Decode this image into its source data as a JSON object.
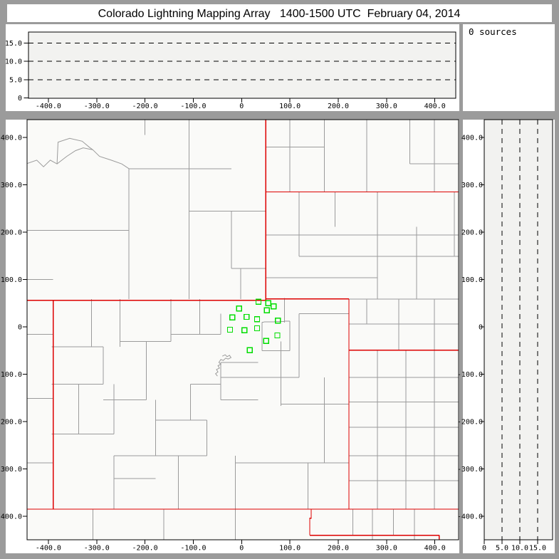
{
  "title": "Colorado Lightning Mapping Array   1400-1500 UTC  February 04, 2014",
  "sources_label": "0 sources",
  "colors": {
    "frame_gray": "#9b9b9b",
    "panel_white": "#ffffff",
    "plot_bg": "#f2f2f0",
    "map_bg": "#fafaf8",
    "county_line": "#9b9b9b",
    "state_border": "#dd0000",
    "station_marker": "#00dd00",
    "axis": "#000000",
    "grid_dash": "#000000"
  },
  "chart_data": [
    {
      "id": "altitude-vs-east-west",
      "type": "scatter",
      "title": "",
      "x_ticks": [
        -400,
        -300,
        -200,
        -100,
        0,
        100,
        200,
        300,
        400
      ],
      "x_tick_labels": [
        "-400.0",
        "-300.0",
        "-200.0",
        "-100.0",
        "0",
        "100.0",
        "200.0",
        "300.0",
        "400.0"
      ],
      "y_ticks": [
        0,
        5,
        10,
        15
      ],
      "y_tick_labels": [
        "0",
        "5.0",
        "10.0",
        "15.0"
      ],
      "xlim": [
        -444,
        449
      ],
      "ylim": [
        0,
        18
      ],
      "y_gridlines_dashed": [
        5,
        10,
        15
      ],
      "grid_style": "dashed",
      "points": []
    },
    {
      "id": "source-count",
      "type": "table",
      "text": "0 sources",
      "value": 0
    },
    {
      "id": "plan-view-map",
      "type": "scatter",
      "title": "",
      "x_ticks": [
        -400,
        -300,
        -200,
        -100,
        0,
        100,
        200,
        300,
        400
      ],
      "x_tick_labels": [
        "-400.0",
        "-300.0",
        "-200.0",
        "-100.0",
        "0",
        "100.0",
        "200.0",
        "300.0",
        "400.0"
      ],
      "y_ticks": [
        400,
        300,
        200,
        100,
        0,
        -100,
        -200,
        -300,
        -400
      ],
      "y_tick_labels": [
        "400.0",
        "300.0",
        "200.0",
        "100.0",
        "0",
        "-100.0",
        "-200.0",
        "-300.0",
        "-400.0"
      ],
      "xlim": [
        -444,
        449
      ],
      "ylim": [
        -450,
        438
      ],
      "marker": "open-square",
      "marker_color": "#00dd00",
      "points": [
        [
          35,
          53
        ],
        [
          55,
          50
        ],
        [
          66,
          43
        ],
        [
          52,
          35
        ],
        [
          -5,
          39
        ],
        [
          -19,
          20
        ],
        [
          10,
          21
        ],
        [
          32,
          16
        ],
        [
          75,
          13
        ],
        [
          -24,
          -6
        ],
        [
          6,
          -7
        ],
        [
          32,
          -3
        ],
        [
          74,
          -18
        ],
        [
          51,
          -30
        ],
        [
          17,
          -49
        ]
      ]
    },
    {
      "id": "altitude-vs-north-south",
      "type": "scatter",
      "title": "",
      "x_ticks": [
        0,
        5,
        10,
        15
      ],
      "x_tick_labels": [
        "0",
        "5.0",
        "10.0",
        "15.0"
      ],
      "y_ticks": [
        400,
        300,
        200,
        100,
        0,
        -100,
        -200,
        -300,
        -400
      ],
      "y_tick_labels": [
        "400.0",
        "300.0",
        "200.0",
        "100.0",
        "0",
        "-100.0",
        "-200.0",
        "-300.0",
        "-400.0"
      ],
      "xlim": [
        0,
        19.2
      ],
      "ylim": [
        -450,
        438
      ],
      "x_gridlines_dashed": [
        5,
        10,
        15
      ],
      "grid_style": "dashed",
      "points": []
    }
  ],
  "map": {
    "state_borders": [
      [
        [
          -444,
          56
        ],
        [
          50,
          56
        ],
        [
          50,
          59
        ],
        [
          222,
          59
        ]
      ],
      [
        [
          50,
          56
        ],
        [
          50,
          438
        ]
      ],
      [
        [
          50,
          285
        ],
        [
          449,
          285
        ]
      ],
      [
        [
          -390,
          56
        ],
        [
          -390,
          -385
        ]
      ],
      [
        [
          222,
          59
        ],
        [
          222,
          -385
        ]
      ],
      [
        [
          -444,
          -385
        ],
        [
          449,
          -385
        ]
      ],
      [
        [
          222,
          -49
        ],
        [
          449,
          -49
        ]
      ],
      [
        [
          144,
          -385
        ],
        [
          144,
          -404
        ],
        [
          141,
          -404
        ],
        [
          141,
          -440
        ]
      ],
      [
        [
          141,
          -440
        ],
        [
          409,
          -440
        ]
      ],
      [
        [
          409,
          -440
        ],
        [
          409,
          -450
        ]
      ]
    ],
    "county_segments": [
      [
        -233,
        59,
        -233,
        334
      ],
      [
        -109,
        59,
        -109,
        438
      ],
      [
        -200,
        405,
        -200,
        438
      ],
      [
        -233,
        334,
        -21,
        334
      ],
      [
        -444,
        204,
        -233,
        204
      ],
      [
        -21,
        123,
        -21,
        244
      ],
      [
        -2,
        59,
        -2,
        123
      ],
      [
        -21,
        123,
        50,
        123
      ],
      [
        -109,
        244,
        50,
        244
      ],
      [
        100,
        285,
        100,
        438
      ],
      [
        171,
        285,
        171,
        438
      ],
      [
        259,
        285,
        259,
        438
      ],
      [
        348,
        344,
        348,
        438
      ],
      [
        399,
        285,
        399,
        438
      ],
      [
        348,
        344,
        449,
        344
      ],
      [
        50,
        380,
        171,
        380
      ],
      [
        119,
        149,
        119,
        285
      ],
      [
        193,
        211,
        193,
        285
      ],
      [
        281,
        59,
        281,
        285
      ],
      [
        362,
        59,
        362,
        211
      ],
      [
        440,
        149,
        440,
        285
      ],
      [
        50,
        194,
        449,
        194
      ],
      [
        119,
        149,
        449,
        149
      ],
      [
        50,
        104,
        281,
        104
      ],
      [
        222,
        59,
        449,
        59
      ],
      [
        325,
        -49,
        325,
        59
      ],
      [
        399,
        -49,
        399,
        59
      ],
      [
        222,
        6,
        449,
        6
      ],
      [
        259,
        6,
        259,
        59
      ],
      [
        281,
        -385,
        281,
        -49
      ],
      [
        340,
        -385,
        340,
        -49
      ],
      [
        399,
        -385,
        399,
        -49
      ],
      [
        222,
        -107,
        449,
        -107
      ],
      [
        222,
        -159,
        449,
        -159
      ],
      [
        222,
        -212,
        449,
        -212
      ],
      [
        222,
        -272,
        449,
        -272
      ],
      [
        222,
        -325,
        449,
        -325
      ],
      [
        -311,
        -42,
        -311,
        59
      ],
      [
        -393,
        -42,
        -286,
        -42
      ],
      [
        -286,
        -121,
        -286,
        -42
      ],
      [
        -393,
        -121,
        -286,
        -121
      ],
      [
        -337,
        -226,
        -337,
        -121
      ],
      [
        -393,
        -226,
        -264,
        -226
      ],
      [
        -264,
        -226,
        -264,
        -121
      ],
      [
        -286,
        -154,
        -197,
        -154
      ],
      [
        -197,
        -154,
        -197,
        -31
      ],
      [
        -252,
        -42,
        -252,
        59
      ],
      [
        -252,
        -31,
        -146,
        -31
      ],
      [
        -146,
        -31,
        -146,
        59
      ],
      [
        -87,
        -16,
        -87,
        59
      ],
      [
        -146,
        -16,
        -43,
        -16
      ],
      [
        -43,
        -16,
        -43,
        28
      ],
      [
        -178,
        -272,
        -178,
        -154
      ],
      [
        -264,
        -272,
        -72,
        -272
      ],
      [
        -72,
        -272,
        -72,
        -197
      ],
      [
        -178,
        -197,
        -72,
        -197
      ],
      [
        -131,
        -385,
        -131,
        -272
      ],
      [
        -13,
        -385,
        -13,
        -272
      ],
      [
        -264,
        -320,
        -178,
        -320
      ],
      [
        -264,
        -385,
        -264,
        -272
      ],
      [
        -13,
        -287,
        222,
        -287
      ],
      [
        137,
        -385,
        137,
        -287
      ],
      [
        171,
        -287,
        171,
        -107
      ],
      [
        81,
        -167,
        81,
        -31
      ],
      [
        81,
        -163,
        222,
        -163
      ],
      [
        42,
        -50,
        42,
        10
      ],
      [
        100,
        -50,
        100,
        12
      ],
      [
        42,
        10,
        100,
        12
      ],
      [
        42,
        -50,
        100,
        -50
      ],
      [
        -43,
        -75,
        34,
        -75
      ],
      [
        89,
        9,
        89,
        61
      ],
      [
        119,
        -107,
        119,
        28
      ],
      [
        -43,
        -107,
        119,
        -107
      ],
      [
        119,
        28,
        222,
        28
      ],
      [
        -43,
        -154,
        34,
        -154
      ],
      [
        -43,
        -154,
        -43,
        -75
      ],
      [
        -106,
        -121,
        -106,
        -197
      ],
      [
        -106,
        -121,
        -43,
        -121
      ],
      [
        -444,
        -16,
        -390,
        -16
      ],
      [
        -444,
        -151,
        -390,
        -151
      ],
      [
        -444,
        -287,
        -390,
        -287
      ],
      [
        -444,
        100,
        -390,
        100
      ],
      [
        -308,
        -450,
        -308,
        -385
      ],
      [
        -161,
        -450,
        -161,
        -385
      ],
      [
        -13,
        -450,
        -13,
        -385
      ],
      [
        230,
        -440,
        230,
        -385
      ],
      [
        271,
        -440,
        271,
        -385
      ],
      [
        314,
        -440,
        314,
        -385
      ],
      [
        358,
        -440,
        358,
        -385
      ],
      [
        271,
        -450,
        271,
        -440
      ],
      [
        358,
        -450,
        358,
        -440
      ]
    ],
    "county_polylines": [
      [
        [
          -444,
          345
        ],
        [
          -424,
          352
        ],
        [
          -410,
          338
        ],
        [
          -396,
          352
        ],
        [
          -382,
          344
        ],
        [
          -362,
          360
        ],
        [
          -344,
          372
        ],
        [
          -328,
          378
        ],
        [
          -308,
          374
        ],
        [
          -294,
          360
        ],
        [
          -270,
          352
        ],
        [
          -248,
          344
        ],
        [
          -233,
          334
        ]
      ],
      [
        [
          -382,
          344
        ],
        [
          -380,
          390
        ],
        [
          -356,
          398
        ],
        [
          -330,
          392
        ],
        [
          -316,
          380
        ],
        [
          -308,
          374
        ]
      ],
      [
        [
          -40,
          -62
        ],
        [
          -34,
          -59
        ],
        [
          -30,
          -63
        ],
        [
          -25,
          -60
        ],
        [
          -22,
          -65
        ],
        [
          -28,
          -68
        ],
        [
          -33,
          -66
        ],
        [
          -38,
          -71
        ],
        [
          -43,
          -69
        ],
        [
          -47,
          -75
        ],
        [
          -43,
          -79
        ],
        [
          -49,
          -82
        ],
        [
          -46,
          -87
        ],
        [
          -52,
          -90
        ],
        [
          -49,
          -95
        ],
        [
          -54,
          -99
        ],
        [
          -50,
          -104
        ]
      ]
    ],
    "stations_km": [
      [
        35,
        53
      ],
      [
        55,
        50
      ],
      [
        66,
        43
      ],
      [
        52,
        35
      ],
      [
        -5,
        39
      ],
      [
        -19,
        20
      ],
      [
        10,
        21
      ],
      [
        32,
        16
      ],
      [
        75,
        13
      ],
      [
        -24,
        -6
      ],
      [
        6,
        -7
      ],
      [
        32,
        -3
      ],
      [
        74,
        -18
      ],
      [
        51,
        -30
      ],
      [
        17,
        -49
      ]
    ]
  }
}
